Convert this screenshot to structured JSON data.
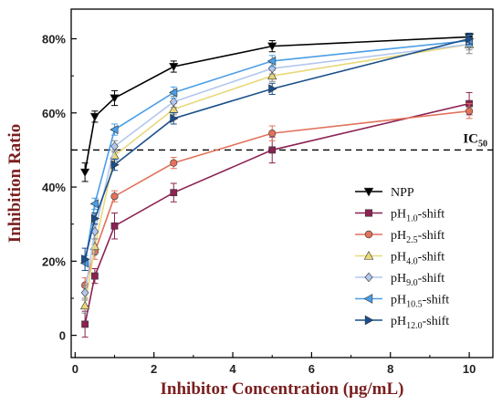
{
  "chart_data": {
    "type": "line",
    "xlabel": "Inhibitor Concentration (μg/mL)",
    "ylabel": "Inhibition Ratio",
    "xlim": [
      -0.1,
      10.6
    ],
    "ylim": [
      -6,
      88
    ],
    "x_ticks": [
      0,
      2,
      4,
      6,
      8,
      10
    ],
    "x_tick_labels": [
      "0",
      "2",
      "4",
      "6",
      "8",
      "10"
    ],
    "y_ticks": [
      0,
      20,
      40,
      60,
      80
    ],
    "y_tick_labels": [
      "0",
      "20%",
      "40%",
      "60%",
      "80%"
    ],
    "reference_line": {
      "y": 50,
      "label_main": "IC",
      "label_sub": "50",
      "style": "dashed"
    },
    "legend_position": "lower-right",
    "x": [
      0.25,
      0.5,
      1.0,
      2.5,
      5.0,
      10.0
    ],
    "series": [
      {
        "name_main": "NPP",
        "name_sub": "",
        "name_suffix": "",
        "color": "#000000",
        "marker": "triangle-down",
        "values": [
          44,
          59,
          64,
          72.5,
          78,
          80.5
        ],
        "errors": [
          2.5,
          1.5,
          2,
          1.5,
          1.5,
          1
        ]
      },
      {
        "name_main": "pH",
        "name_sub": "1.0",
        "name_suffix": "-shift",
        "color": "#8b2252",
        "marker": "square",
        "values": [
          3,
          16,
          29.5,
          38.5,
          50,
          62.5
        ],
        "errors": [
          3.5,
          2,
          3.5,
          2.5,
          3.5,
          3
        ]
      },
      {
        "name_main": "pH",
        "name_sub": "2.5",
        "name_suffix": "-shift",
        "color": "#e2725b",
        "marker": "circle",
        "values": [
          13.5,
          22.5,
          37.5,
          46.5,
          54.5,
          60.5
        ],
        "errors": [
          2,
          2,
          1.5,
          1.5,
          2,
          2
        ]
      },
      {
        "name_main": "pH",
        "name_sub": "4.0",
        "name_suffix": "-shift",
        "color": "#e8d87a",
        "marker": "triangle-up",
        "values": [
          8,
          24,
          48.5,
          61,
          70,
          78.5
        ],
        "errors": [
          2,
          2,
          1.5,
          1.5,
          1.5,
          1.5
        ]
      },
      {
        "name_main": "pH",
        "name_sub": "9.0",
        "name_suffix": "-shift",
        "color": "#b3c7ee",
        "marker": "diamond",
        "values": [
          11.5,
          28,
          51,
          63,
          72,
          78.5
        ],
        "errors": [
          2,
          2,
          1.5,
          1.5,
          1.5,
          2.5
        ]
      },
      {
        "name_main": "pH",
        "name_sub": "10.5",
        "name_suffix": "-shift",
        "color": "#4a9ee6",
        "marker": "triangle-left",
        "values": [
          19.5,
          35.5,
          55.5,
          65.5,
          74,
          79.5
        ],
        "errors": [
          2,
          1.5,
          1.5,
          1.5,
          1.5,
          1.5
        ]
      },
      {
        "name_main": "pH",
        "name_sub": "12.0",
        "name_suffix": "-shift",
        "color": "#1a4f8b",
        "marker": "triangle-right",
        "values": [
          20.5,
          31.5,
          46,
          58.5,
          66.5,
          80
        ],
        "errors": [
          3,
          1.5,
          1.5,
          1.5,
          1.5,
          1.5
        ]
      }
    ]
  }
}
